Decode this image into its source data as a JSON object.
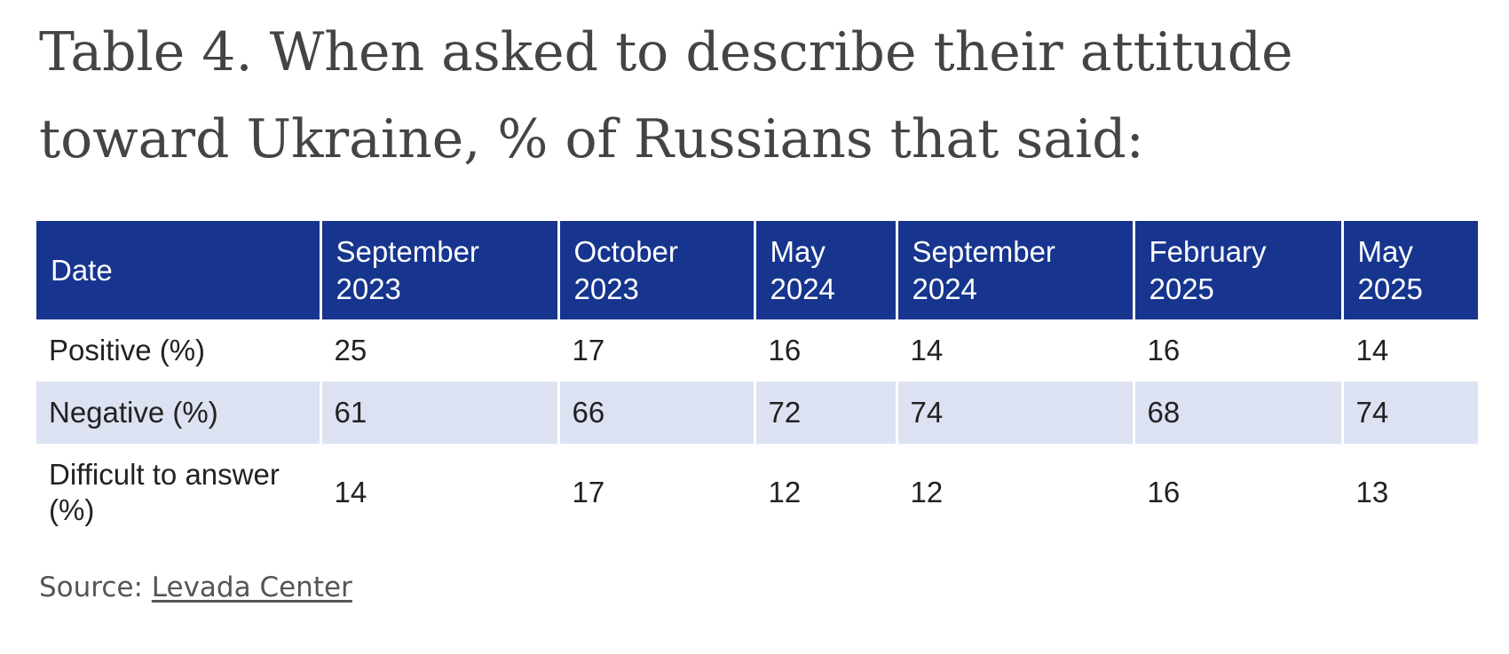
{
  "title": "Table 4. When asked to describe their attitude toward Ukraine, % of Russians that said:",
  "chart_data": {
    "type": "table",
    "columns": [
      "Date",
      "September 2023",
      "October 2023",
      "May 2024",
      "September 2024",
      "February 2025",
      "May 2025"
    ],
    "rows": [
      {
        "label": "Positive (%)",
        "values": [
          25,
          17,
          16,
          14,
          16,
          14
        ]
      },
      {
        "label": "Negative (%)",
        "values": [
          61,
          66,
          72,
          74,
          68,
          74
        ]
      },
      {
        "label": "Difficult to answer (%)",
        "values": [
          14,
          17,
          12,
          12,
          16,
          13
        ]
      }
    ]
  },
  "source": {
    "prefix": "Source: ",
    "link_text": "Levada Center"
  },
  "colors": {
    "header_bg": "#17358e",
    "shaded_row_bg": "#dce2f2",
    "title_text": "#444444"
  }
}
